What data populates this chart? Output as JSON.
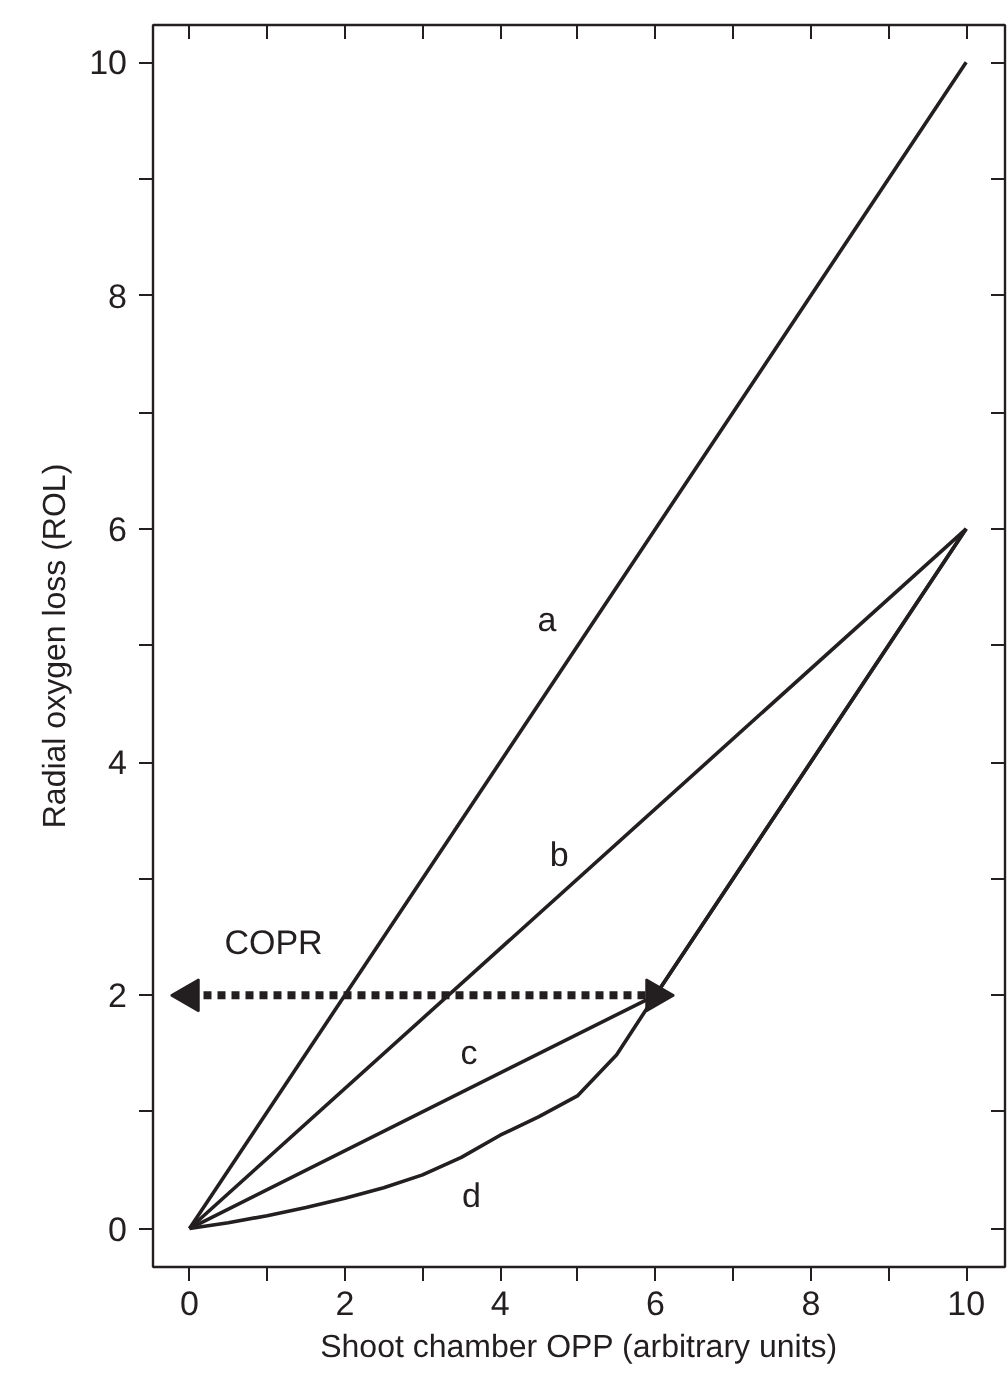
{
  "chart_data": {
    "type": "line",
    "xlabel": "Shoot chamber OPP (arbitrary units)",
    "ylabel": "Radial oxygen loss (ROL)",
    "xlim": [
      -0.47,
      10.5
    ],
    "ylim": [
      -0.33,
      10.32
    ],
    "xticks": [
      0,
      {
        "value": 1,
        "label": null
      },
      2,
      {
        "value": 3,
        "label": null
      },
      4,
      {
        "value": 5,
        "label": null
      },
      6,
      {
        "value": 7,
        "label": null
      },
      8,
      {
        "value": 9,
        "label": null
      },
      10
    ],
    "yticks": [
      0,
      {
        "value": 1,
        "label": null
      },
      2,
      {
        "value": 3,
        "label": null
      },
      4,
      {
        "value": 5,
        "label": null
      },
      6,
      {
        "value": 7,
        "label": null
      },
      8,
      {
        "value": 9,
        "label": null
      },
      10
    ],
    "grid": false,
    "marker": "none",
    "line_style": "solid",
    "series": [
      {
        "name": "a",
        "color": "#231f20",
        "x": [
          0,
          10
        ],
        "values": [
          0,
          10
        ]
      },
      {
        "name": "b",
        "color": "#231f20",
        "x": [
          0,
          10
        ],
        "values": [
          0,
          6
        ]
      },
      {
        "name": "c",
        "color": "#231f20",
        "x": [
          0,
          6,
          10
        ],
        "values": [
          0,
          2,
          6
        ]
      },
      {
        "name": "d",
        "color": "#231f20",
        "x": [
          0,
          0.5,
          1,
          1.5,
          2,
          2.5,
          3,
          3.5,
          4,
          4.5,
          5,
          5.5,
          6,
          10
        ],
        "values": [
          0,
          0.05,
          0.11,
          0.18,
          0.26,
          0.35,
          0.46,
          0.61,
          0.8,
          0.96,
          1.14,
          1.49,
          2,
          6
        ]
      },
      {
        "name": "COPR",
        "color": "#231f20",
        "x": [
          0,
          6
        ],
        "values": [
          2,
          2
        ],
        "line_style": "dotted",
        "marker": "triangle"
      }
    ]
  }
}
